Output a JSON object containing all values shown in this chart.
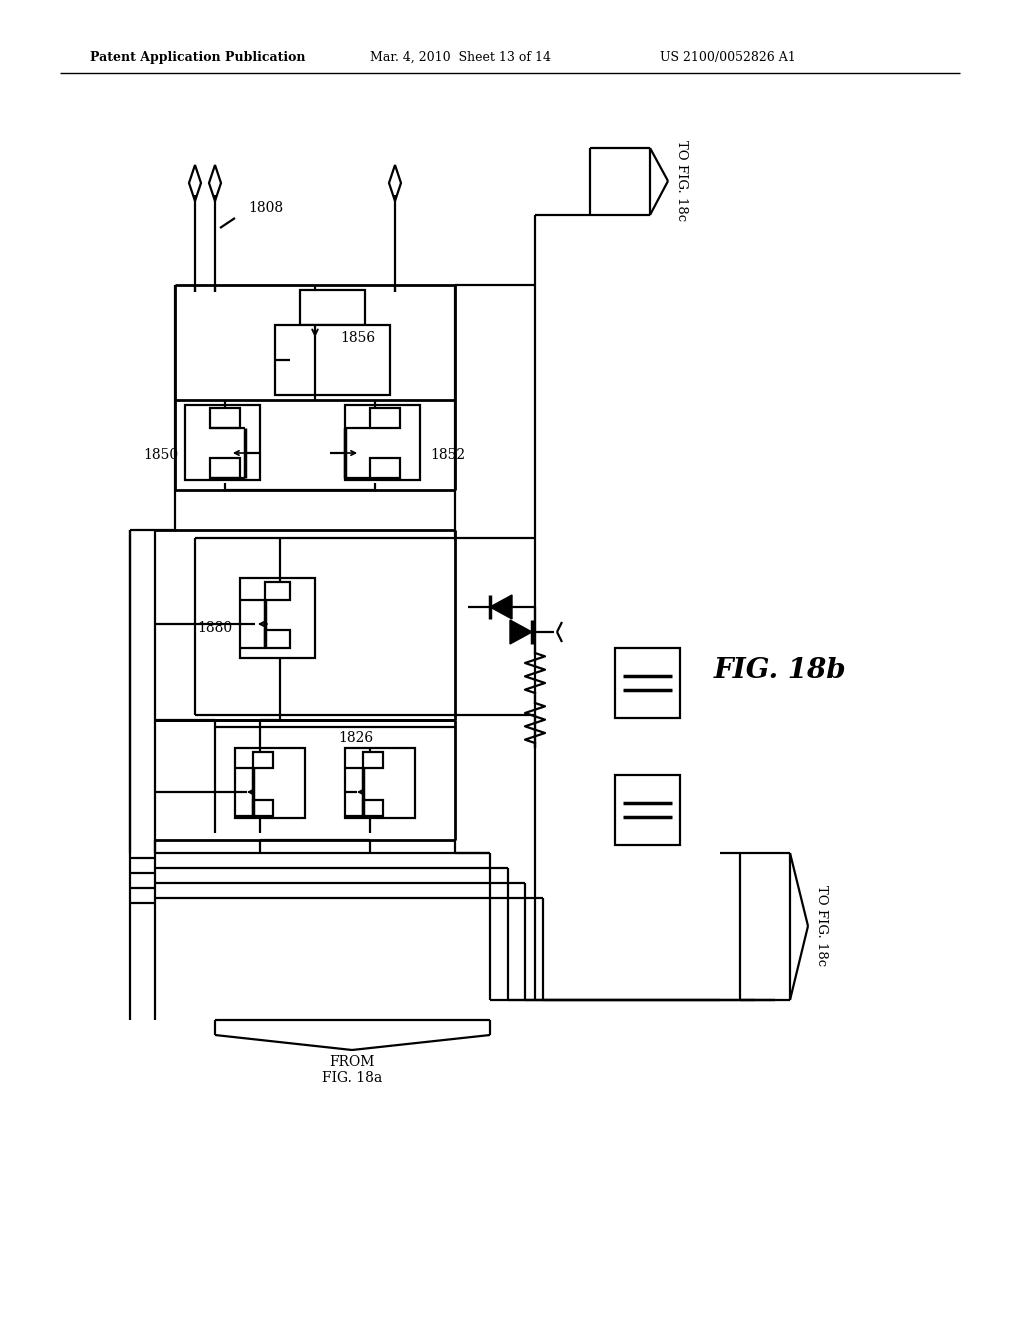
{
  "header_left": "Patent Application Publication",
  "header_mid": "Mar. 4, 2010  Sheet 13 of 14",
  "header_right": "US 2100/0052826 A1",
  "fig_label": "FIG. 18b",
  "bg": "#ffffff",
  "lc": "#000000",
  "label_1808": "1808",
  "label_1856": "1856",
  "label_1850": "1850",
  "label_1852": "1852",
  "label_1880": "1880",
  "label_1826": "1826",
  "to_18c_top": "TO FIG. 18c",
  "to_18c_bot": "TO FIG. 18c",
  "from_18a": "FROM\nFIG. 18a"
}
